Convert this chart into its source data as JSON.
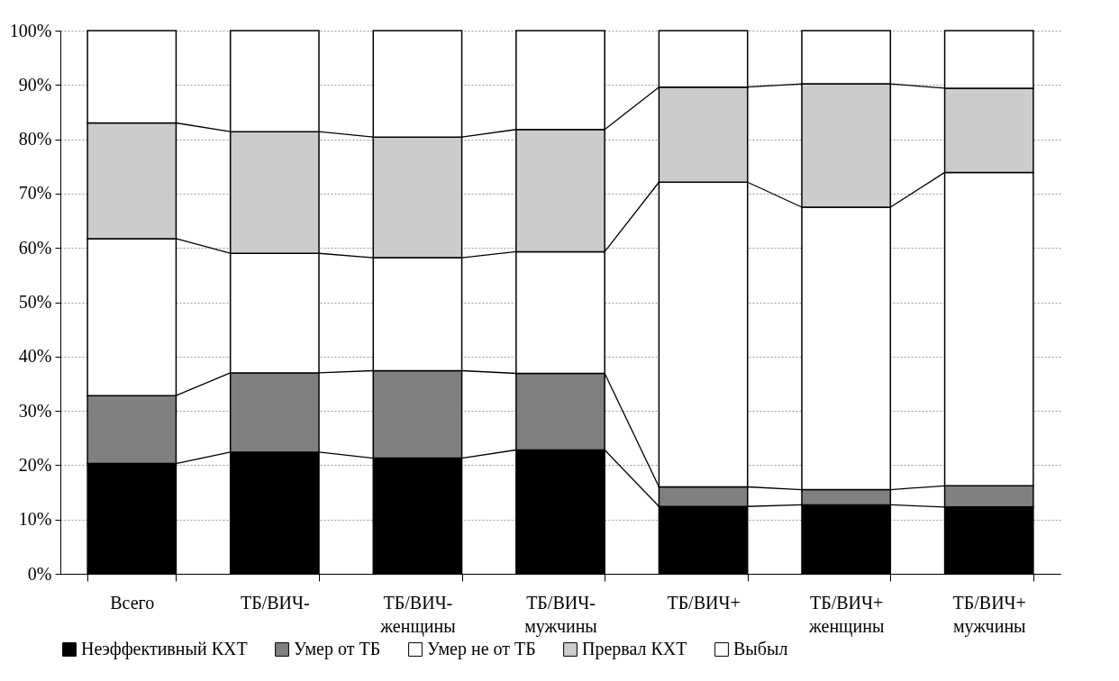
{
  "chart_data": {
    "type": "bar",
    "stacked": true,
    "categories": [
      "Всего",
      "ТБ/ВИЧ-",
      "ТБ/ВИЧ- женщины",
      "ТБ/ВИЧ- мужчины",
      "ТБ/ВИЧ+",
      "ТБ/ВИЧ+ женщины",
      "ТБ/ВИЧ+ мужчины"
    ],
    "series": [
      {
        "name": "Неэффективный КХТ",
        "color": "#000000",
        "values": [
          20.3,
          22.4,
          21.3,
          22.8,
          12.4,
          12.7,
          12.3
        ]
      },
      {
        "name": "Умер от ТБ",
        "color": "#808080",
        "values": [
          12.5,
          14.6,
          16.1,
          14.1,
          3.6,
          2.8,
          3.9
        ]
      },
      {
        "name": "Умер не от ТБ",
        "color": "#ffffff",
        "values": [
          28.9,
          22.0,
          20.8,
          22.4,
          56.1,
          52.0,
          57.7
        ]
      },
      {
        "name": "Прервал КХТ",
        "color": "#cccccc",
        "values": [
          21.3,
          22.4,
          22.2,
          22.5,
          17.5,
          22.7,
          15.5
        ]
      },
      {
        "name": "Выбыл",
        "color": "#ffffff",
        "values": [
          17.0,
          18.6,
          19.6,
          18.2,
          10.4,
          9.8,
          10.6
        ]
      }
    ],
    "ylim": [
      0,
      100
    ],
    "yticks": [
      {
        "value": 0,
        "label": "0%"
      },
      {
        "value": 10,
        "label": "10%"
      },
      {
        "value": 20,
        "label": "20%"
      },
      {
        "value": 30,
        "label": "30%"
      },
      {
        "value": 40,
        "label": "40%"
      },
      {
        "value": 50,
        "label": "50%"
      },
      {
        "value": 60,
        "label": "60%"
      },
      {
        "value": 70,
        "label": "70%"
      },
      {
        "value": 80,
        "label": "80%"
      },
      {
        "value": 90,
        "label": "90%"
      },
      {
        "value": 100,
        "label": "100%"
      }
    ],
    "grid": "y",
    "legend": "bottom"
  }
}
